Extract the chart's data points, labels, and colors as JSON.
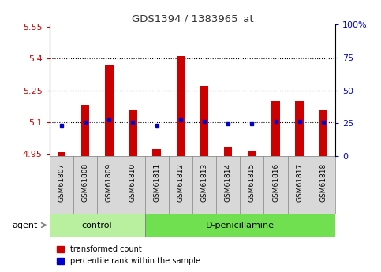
{
  "title": "GDS1394 / 1383965_at",
  "samples": [
    "GSM61807",
    "GSM61808",
    "GSM61809",
    "GSM61810",
    "GSM61811",
    "GSM61812",
    "GSM61813",
    "GSM61814",
    "GSM61815",
    "GSM61816",
    "GSM61817",
    "GSM61818"
  ],
  "red_values": [
    4.96,
    5.18,
    5.37,
    5.16,
    4.975,
    5.41,
    5.27,
    4.985,
    4.965,
    5.2,
    5.2,
    5.16
  ],
  "blue_values": [
    5.085,
    5.1,
    5.11,
    5.1,
    5.085,
    5.11,
    5.105,
    5.092,
    5.092,
    5.105,
    5.105,
    5.1
  ],
  "ylim_left": [
    4.94,
    5.56
  ],
  "ylim_right": [
    0,
    100
  ],
  "yticks_left": [
    4.95,
    5.1,
    5.25,
    5.4,
    5.55
  ],
  "yticks_right": [
    0,
    25,
    50,
    75,
    100
  ],
  "ytick_labels_left": [
    "4.95",
    "5.1",
    "5.25",
    "5.4",
    "5.55"
  ],
  "ytick_labels_right": [
    "0",
    "25",
    "50",
    "75",
    "100%"
  ],
  "hlines": [
    5.1,
    5.25,
    5.4
  ],
  "bar_bottom": 4.94,
  "bar_color": "#cc0000",
  "blue_color": "#0000cc",
  "n_control": 4,
  "n_treatment": 8,
  "control_label": "control",
  "treatment_label": "D-penicillamine",
  "agent_label": "agent",
  "legend_red": "transformed count",
  "legend_blue": "percentile rank within the sample",
  "control_bg": "#b8f0a0",
  "treatment_bg": "#70e050",
  "sample_bg": "#d8d8d8",
  "plot_bg": "#ffffff",
  "left_tick_color": "#cc0000",
  "right_tick_color": "#0000cc",
  "figsize": [
    4.83,
    3.45
  ],
  "dpi": 100
}
